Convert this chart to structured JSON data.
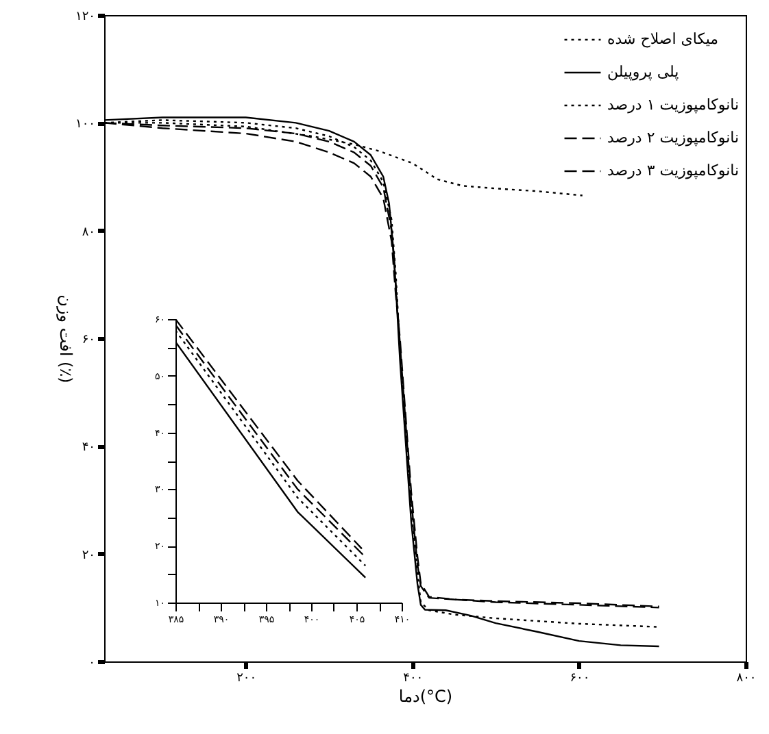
{
  "chart_data": [
    {
      "type": "line",
      "xlabel": "دما(°C)",
      "ylabel": "افت وزن (٪)",
      "legend": "top right",
      "xlim": [
        30,
        800
      ],
      "ylim": [
        0,
        120
      ],
      "xticks": [
        {
          "value": 200,
          "label": "۲۰۰"
        },
        {
          "value": 400,
          "label": "۴۰۰"
        },
        {
          "value": 600,
          "label": "۶۰۰"
        },
        {
          "value": 800,
          "label": "۸۰۰"
        }
      ],
      "yticks": [
        {
          "value": 0,
          "label": "۰"
        },
        {
          "value": 20,
          "label": "۲۰"
        },
        {
          "value": 40,
          "label": "۴۰"
        },
        {
          "value": 60,
          "label": "۶۰"
        },
        {
          "value": 80,
          "label": "۸۰"
        },
        {
          "value": 100,
          "label": "۱۰۰"
        },
        {
          "value": 120,
          "label": "۱۲۰"
        }
      ],
      "series": [
        {
          "name": "میکای اصلاح شده",
          "color": "#000000",
          "line_style": "dotted",
          "x": [
            30,
            100,
            200,
            280,
            330,
            361,
            400,
            430,
            460,
            500,
            550,
            604
          ],
          "values": [
            100,
            100,
            99.3,
            97.5,
            96,
            94.7,
            92.5,
            89.5,
            88.3,
            87.8,
            87.3,
            86.5
          ]
        },
        {
          "name": "پلی پروپیلن",
          "color": "#000000",
          "line_style": "solid",
          "x": [
            30,
            100,
            200,
            260,
            300,
            330,
            350,
            365,
            372,
            378,
            385,
            398.5,
            406,
            410,
            415,
            440,
            470,
            500,
            550,
            600,
            650,
            696
          ],
          "values": [
            100.5,
            101,
            101,
            100,
            98.5,
            96.5,
            94,
            90,
            85,
            75,
            56,
            26,
            14.4,
            10.5,
            9.6,
            9.5,
            8.5,
            7.1,
            5.5,
            3.8,
            3,
            2.8
          ]
        },
        {
          "name": "نانوکامپوزیت ۱ درصد",
          "color": "#000000",
          "line_style": "dotted",
          "x": [
            30,
            100,
            200,
            260,
            300,
            330,
            350,
            365,
            375,
            380,
            385,
            398.5,
            406,
            410,
            420,
            450,
            500,
            600,
            696
          ],
          "values": [
            100,
            100.5,
            100,
            99,
            97.5,
            95.5,
            93,
            89,
            82,
            72,
            58,
            28.5,
            16.5,
            11,
            9.5,
            8.7,
            8,
            7,
            6.4
          ]
        },
        {
          "name": "نانوکامپوزیت ۲ درصد",
          "color": "#000000",
          "line_style": "dashed",
          "x": [
            30,
            100,
            200,
            260,
            300,
            330,
            350,
            365,
            375,
            380,
            385,
            398.5,
            406,
            410,
            420,
            450,
            500,
            600,
            696
          ],
          "values": [
            100,
            99.5,
            99,
            98,
            96.5,
            94.5,
            92,
            88,
            80,
            70,
            59,
            30,
            18,
            14,
            11.8,
            11.5,
            11.2,
            10.8,
            10.2
          ]
        },
        {
          "name": "نانوکامپوزیت ۳ درصد",
          "color": "#000000",
          "line_style": "dashed",
          "x": [
            30,
            100,
            200,
            260,
            300,
            330,
            350,
            365,
            375,
            380,
            385,
            398.5,
            406,
            410,
            420,
            450,
            500,
            600,
            696
          ],
          "values": [
            100,
            99,
            98,
            96.5,
            94.5,
            92.5,
            90,
            86,
            78,
            68,
            60,
            31.5,
            19.5,
            14.5,
            12,
            11.5,
            11,
            10.5,
            10
          ]
        }
      ]
    },
    {
      "type": "line",
      "xlim": [
        385,
        410
      ],
      "ylim": [
        10,
        60
      ],
      "xticks": [
        {
          "value": 385,
          "label": "۳۸۵"
        },
        {
          "value": 387.5,
          "label": null
        },
        {
          "value": 390,
          "label": "۳۹۰"
        },
        {
          "value": 392.5,
          "label": null
        },
        {
          "value": 395,
          "label": "۳۹۵"
        },
        {
          "value": 397.5,
          "label": null
        },
        {
          "value": 400,
          "label": "۴۰۰"
        },
        {
          "value": 402.5,
          "label": null
        },
        {
          "value": 405,
          "label": "۴۰۵"
        },
        {
          "value": 407.5,
          "label": null
        },
        {
          "value": 410,
          "label": "۴۱۰"
        }
      ],
      "yticks": [
        {
          "value": 10,
          "label": "۱۰"
        },
        {
          "value": 15,
          "label": null
        },
        {
          "value": 20,
          "label": "۲۰"
        },
        {
          "value": 25,
          "label": null
        },
        {
          "value": 30,
          "label": "۳۰"
        },
        {
          "value": 35,
          "label": null
        },
        {
          "value": 40,
          "label": "۴۰"
        },
        {
          "value": 45,
          "label": null
        },
        {
          "value": 50,
          "label": "۵۰"
        },
        {
          "value": 55,
          "label": null
        },
        {
          "value": 60,
          "label": "۶۰"
        }
      ],
      "series": [
        {
          "color": "#000000",
          "line_style": "solid",
          "x": [
            385,
            398.5,
            406
          ],
          "values": [
            56,
            26,
            14.4
          ]
        },
        {
          "color": "#000000",
          "line_style": "dotted",
          "x": [
            385,
            398.5,
            406
          ],
          "values": [
            58,
            28.5,
            16.5
          ]
        },
        {
          "color": "#000000",
          "line_style": "dashed",
          "x": [
            385,
            398.5,
            406
          ],
          "values": [
            59,
            30,
            18
          ]
        },
        {
          "color": "#000000",
          "line_style": "dashed",
          "x": [
            385,
            398.5,
            405.6
          ],
          "values": [
            60,
            31.5,
            19.5
          ]
        }
      ]
    }
  ]
}
